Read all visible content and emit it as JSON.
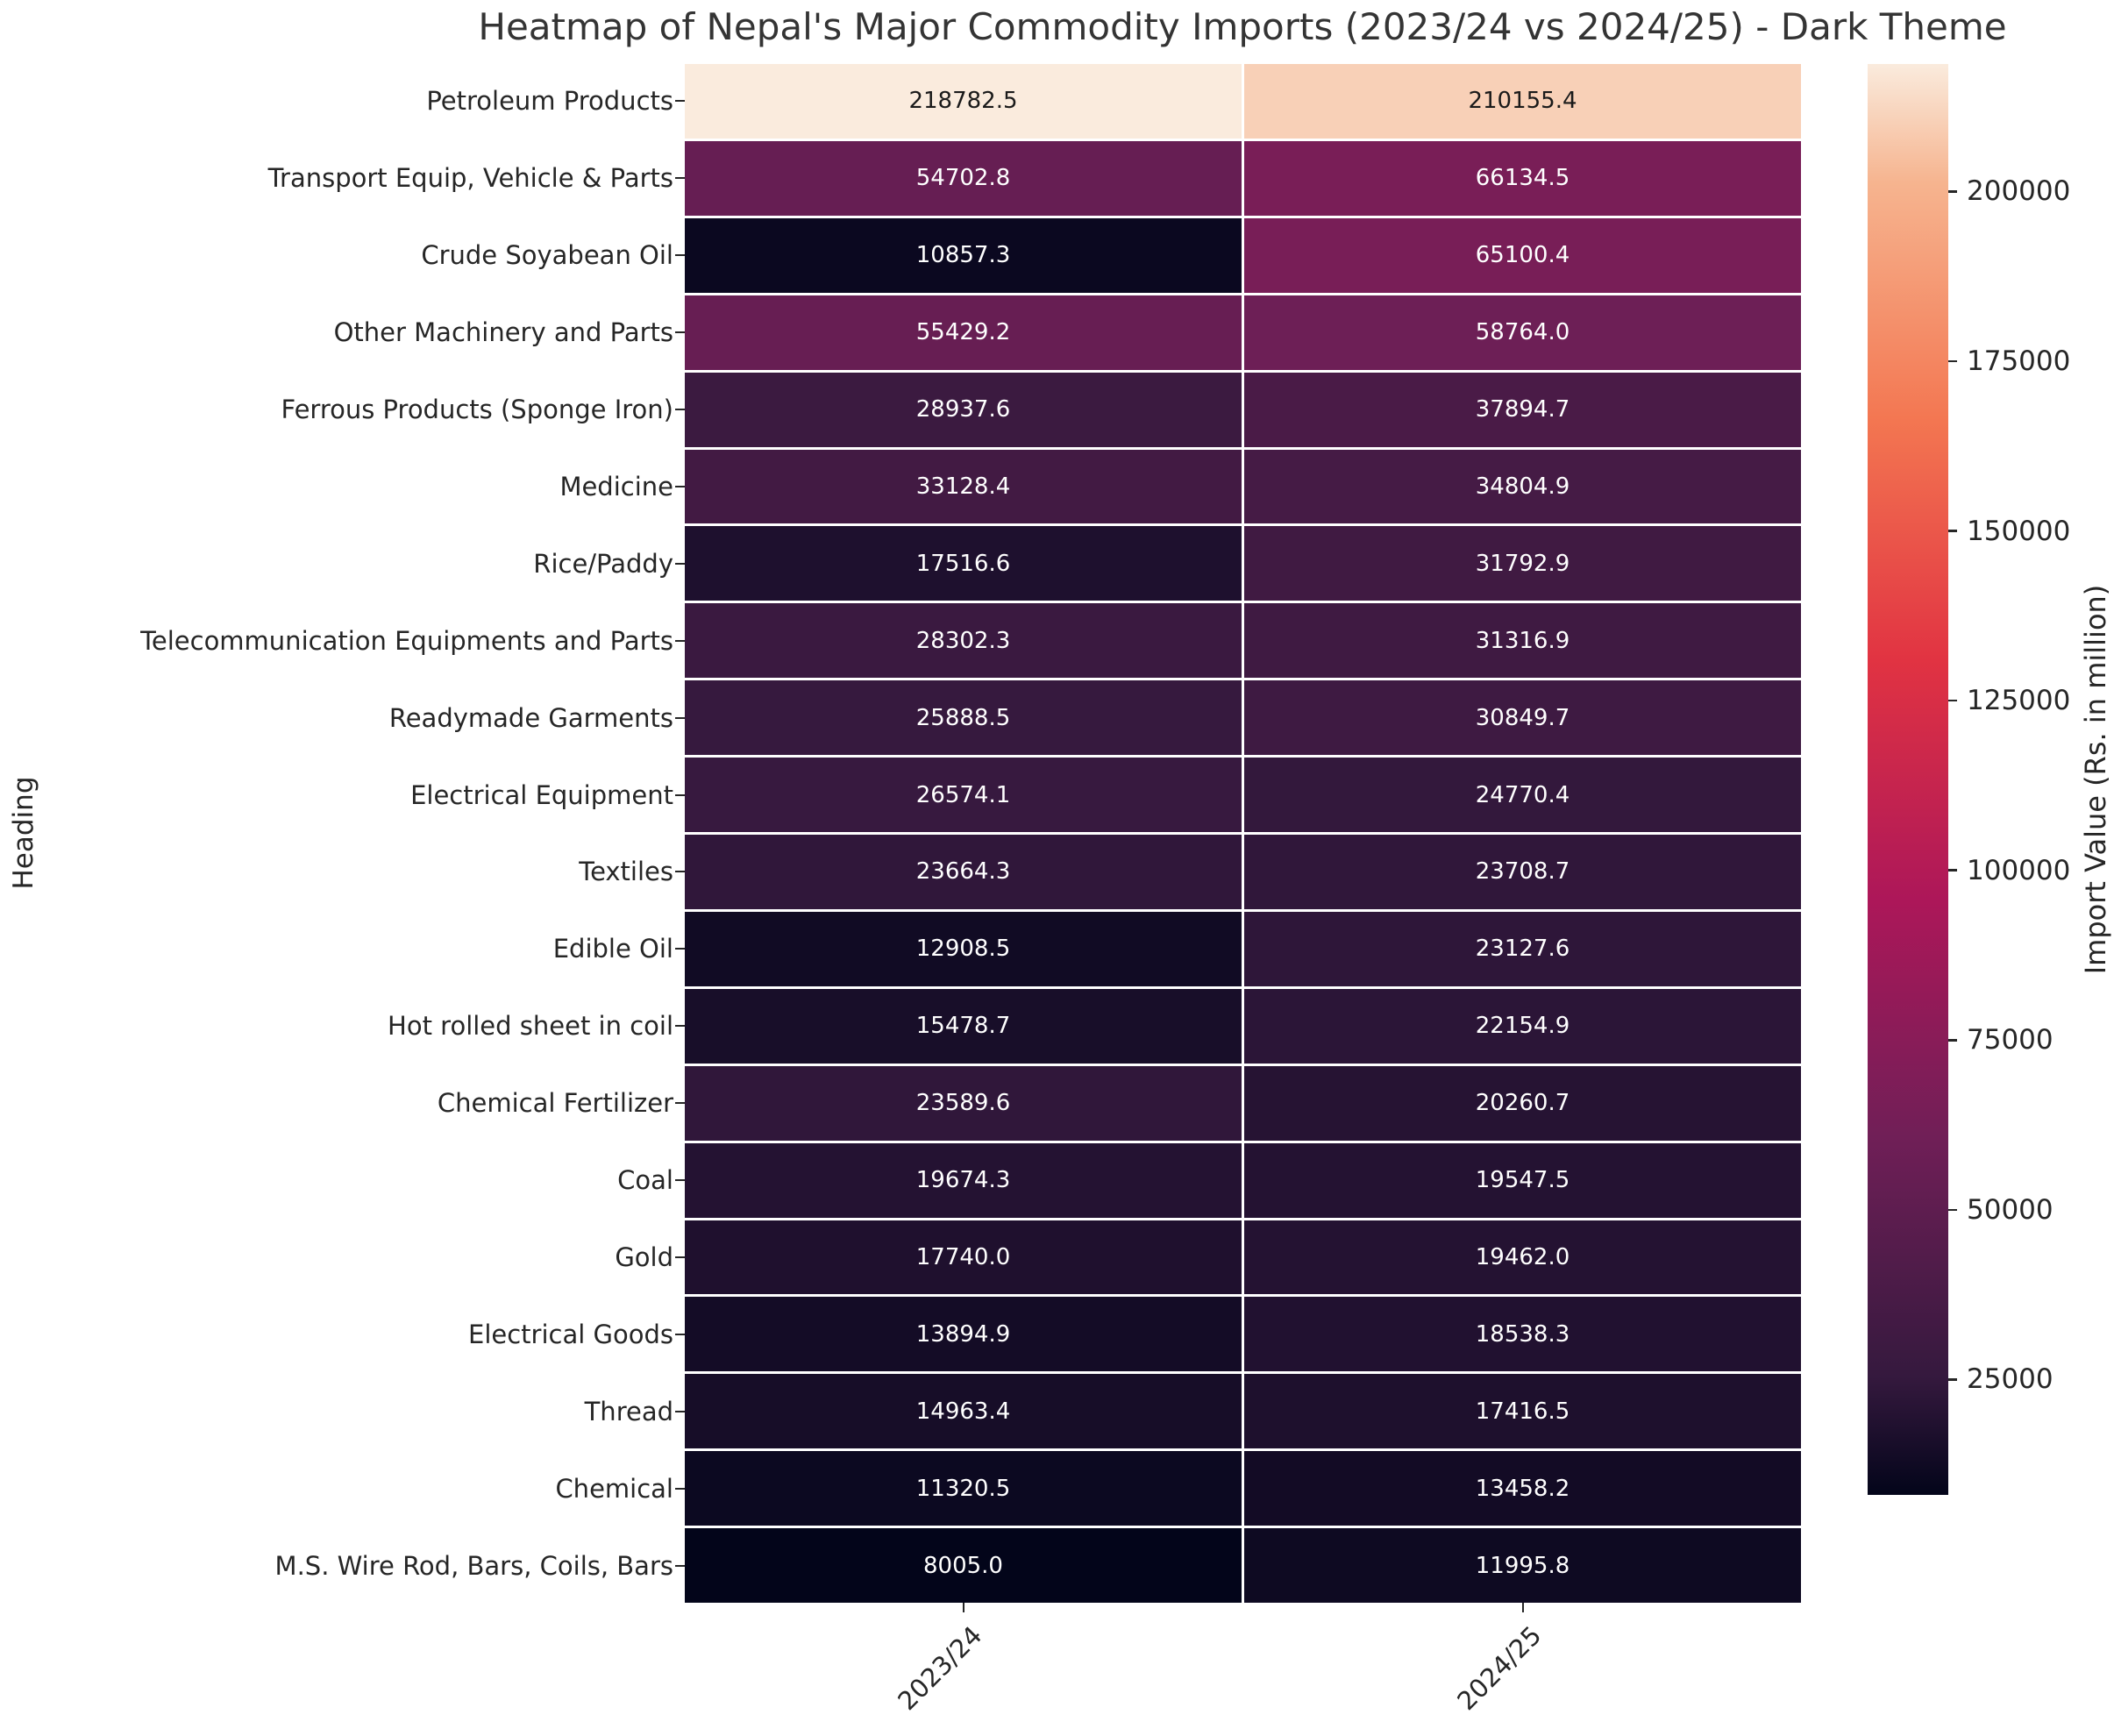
{
  "chart_data": {
    "type": "heatmap",
    "title": "Heatmap of Nepal's Major Commodity Imports (2023/24 vs 2024/25) - Dark Theme",
    "ylabel": "Heading",
    "xlabel": "",
    "columns": [
      "2023/24",
      "2024/25"
    ],
    "rows": [
      "Petroleum Products",
      "Transport Equip, Vehicle & Parts",
      "Crude Soyabean Oil",
      "Other Machinery and Parts",
      "Ferrous Products (Sponge Iron)",
      "Medicine",
      "Rice/Paddy",
      "Telecommunication Equipments and Parts",
      "Readymade Garments",
      "Electrical Equipment",
      "Textiles",
      "Edible Oil",
      "Hot rolled sheet in coil",
      "Chemical Fertilizer",
      "Coal",
      "Gold",
      "Electrical Goods",
      "Thread",
      "Chemical",
      "M.S. Wire Rod, Bars, Coils, Bars"
    ],
    "values": [
      [
        218782.5,
        210155.4
      ],
      [
        54702.8,
        66134.5
      ],
      [
        10857.3,
        65100.4
      ],
      [
        55429.2,
        58764.0
      ],
      [
        28937.6,
        37894.7
      ],
      [
        33128.4,
        34804.9
      ],
      [
        17516.6,
        31792.9
      ],
      [
        28302.3,
        31316.9
      ],
      [
        25888.5,
        30849.7
      ],
      [
        26574.1,
        24770.4
      ],
      [
        23664.3,
        23708.7
      ],
      [
        12908.5,
        23127.6
      ],
      [
        15478.7,
        22154.9
      ],
      [
        23589.6,
        20260.7
      ],
      [
        19674.3,
        19547.5
      ],
      [
        17740.0,
        19462.0
      ],
      [
        13894.9,
        18538.3
      ],
      [
        14963.4,
        17416.5
      ],
      [
        11320.5,
        13458.2
      ],
      [
        8005.0,
        11995.8
      ]
    ],
    "vmin": 8005.0,
    "vmax": 218782.5,
    "colormap": "rocket",
    "annotated": true,
    "grid": "white-lines",
    "colorbar_label": "Import Value (Rs. in million)",
    "colorbar_ticks": [
      200000,
      175000,
      150000,
      125000,
      100000,
      75000,
      50000,
      25000
    ],
    "colorbar_position": "right"
  }
}
